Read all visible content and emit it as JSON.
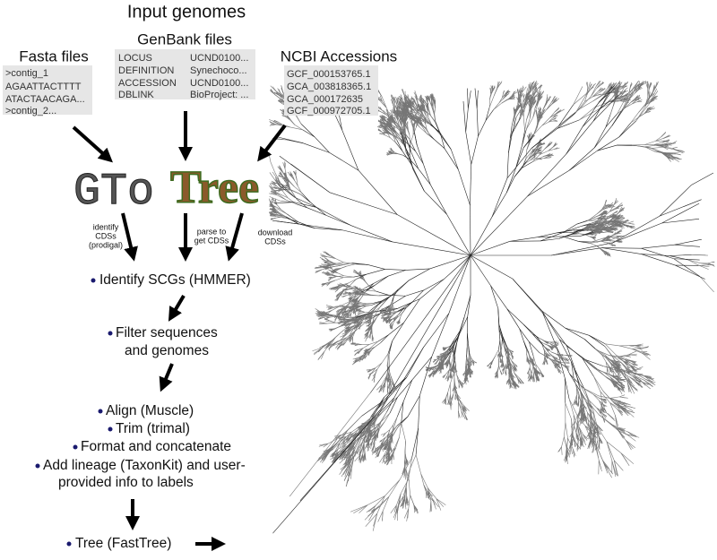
{
  "header": {
    "title": "Input genomes"
  },
  "inputs": {
    "fasta": {
      "title": "Fasta files",
      "lines": [
        ">contig_1",
        "AGAATTACTTTT",
        "ATACTAACAGA...",
        ">contig_2..."
      ]
    },
    "genbank": {
      "title": "GenBank files",
      "rows": [
        [
          "LOCUS",
          "UCND0100..."
        ],
        [
          "DEFINITION",
          "Synechoco..."
        ],
        [
          "ACCESSION",
          "UCND0100..."
        ],
        [
          "DBLINK",
          "BioProject: ..."
        ]
      ]
    },
    "ncbi": {
      "title": "NCBI Accessions",
      "lines": [
        "GCF_000153765.1",
        "GCA_003818365.1",
        "GCA_000172635",
        "GCF_000972705.1"
      ]
    }
  },
  "logo": {
    "left": "GTo",
    "right": "Tree"
  },
  "arrow_labels": [
    [
      "identify",
      "CDSs",
      "(prodigal)"
    ],
    [
      "parse to",
      "get CDSs"
    ],
    [
      "download",
      "CDSs"
    ]
  ],
  "steps": [
    [
      "Identify SCGs (HMMER)"
    ],
    [
      "Filter sequences",
      "and genomes"
    ],
    [
      "Align (Muscle)"
    ],
    [
      "Trim (trimal)"
    ],
    [
      "Format and concatenate"
    ],
    [
      "Add lineage (TaxonKit) and user-",
      "provided info to labels"
    ],
    [
      "Tree (FastTree)"
    ]
  ]
}
